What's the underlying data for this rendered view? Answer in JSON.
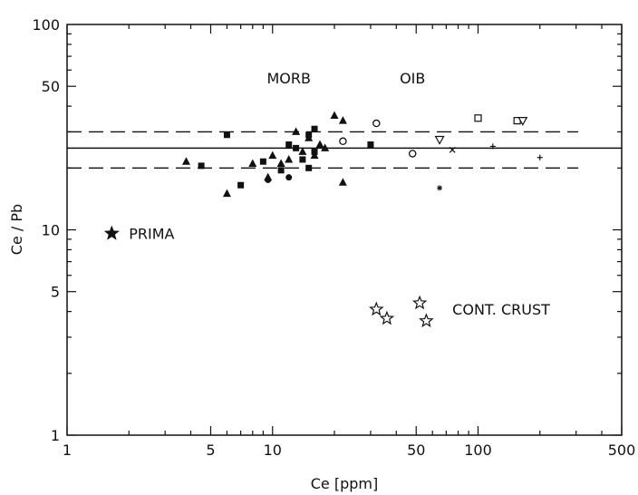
{
  "chart_data": {
    "type": "scatter",
    "title": "",
    "xlabel": "Ce [ppm]",
    "ylabel": "Ce / Pb",
    "xscale": "log",
    "yscale": "log",
    "xlim": [
      1,
      500
    ],
    "ylim": [
      1,
      100
    ],
    "x_ticks": [
      "1",
      "5",
      "10",
      "50",
      "100",
      "500"
    ],
    "y_ticks": [
      "1",
      "5",
      "10",
      "50",
      "100"
    ],
    "annotations": [
      {
        "id": "morb",
        "text": "MORB",
        "x": 12,
        "y": 55
      },
      {
        "id": "oib",
        "text": "OIB",
        "x": 48,
        "y": 55
      },
      {
        "id": "prima",
        "text": "PRIMA",
        "x": 2.0,
        "y": 9.6
      },
      {
        "id": "cont",
        "text": "CONT. CRUST",
        "x": 75,
        "y": 4.1
      }
    ],
    "reference_lines": [
      {
        "name": "mean",
        "style": "solid",
        "y": 25
      },
      {
        "name": "upper",
        "style": "dashed",
        "y": 30
      },
      {
        "name": "lower",
        "style": "dashed",
        "y": 20
      }
    ],
    "series": [
      {
        "marker": "square-filled",
        "points": [
          [
            4.5,
            20.5
          ],
          [
            6,
            29
          ],
          [
            7,
            16.5
          ],
          [
            9,
            21.5
          ],
          [
            11,
            19.5
          ],
          [
            12,
            26
          ],
          [
            13,
            25
          ],
          [
            14,
            22
          ],
          [
            15,
            20
          ],
          [
            15,
            29
          ],
          [
            16,
            24
          ],
          [
            16,
            31
          ],
          [
            30,
            26
          ]
        ]
      },
      {
        "marker": "triangle-filled",
        "points": [
          [
            3.8,
            21.5
          ],
          [
            6,
            15
          ],
          [
            8,
            21
          ],
          [
            9.5,
            18
          ],
          [
            10,
            23
          ],
          [
            11,
            21
          ],
          [
            12,
            22
          ],
          [
            13,
            30
          ],
          [
            14,
            24
          ],
          [
            15,
            28
          ],
          [
            16,
            23
          ],
          [
            17,
            26
          ],
          [
            18,
            25
          ],
          [
            20,
            36
          ],
          [
            22,
            34
          ],
          [
            22,
            17
          ]
        ]
      },
      {
        "marker": "circle-filled",
        "points": [
          [
            9.5,
            17.5
          ],
          [
            12,
            18
          ]
        ]
      },
      {
        "marker": "circle-open",
        "points": [
          [
            22,
            27
          ],
          [
            32,
            33
          ],
          [
            48,
            23.5
          ]
        ]
      },
      {
        "marker": "square-open",
        "points": [
          [
            100,
            35
          ],
          [
            155,
            34
          ]
        ]
      },
      {
        "marker": "triangle-open",
        "points": [
          [
            65,
            27.5
          ],
          [
            165,
            34
          ]
        ]
      },
      {
        "marker": "x",
        "points": [
          [
            75,
            24.5
          ]
        ]
      },
      {
        "marker": "plus",
        "points": [
          [
            118,
            25.5
          ],
          [
            200,
            22.5
          ]
        ]
      },
      {
        "marker": "asterisk",
        "points": [
          [
            65,
            16
          ]
        ]
      },
      {
        "marker": "star-filled",
        "points": [
          [
            1.65,
            9.6
          ]
        ]
      },
      {
        "marker": "star-open",
        "points": [
          [
            32,
            4.1
          ],
          [
            36,
            3.7
          ],
          [
            52,
            4.4
          ],
          [
            56,
            3.6
          ]
        ]
      }
    ]
  }
}
